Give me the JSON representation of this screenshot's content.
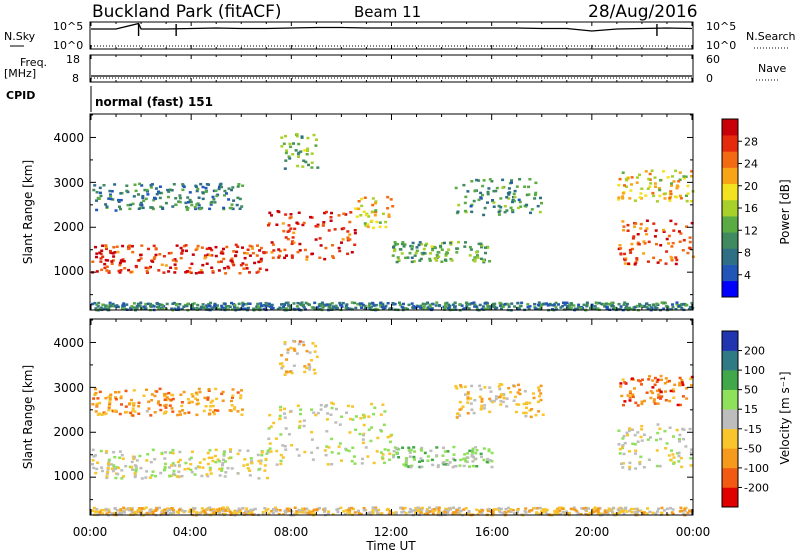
{
  "header": {
    "title": "Buckland Park (fitACF)",
    "beam": "Beam 11",
    "date": "28/Aug/2016"
  },
  "top_panels": {
    "nsky_label": "N.Sky",
    "nsky_left_ticks": [
      "10^5",
      "10^0"
    ],
    "nsky_right_ticks": [
      "10^5",
      "10^0"
    ],
    "nsearch_label": "N.Search",
    "freq_label": "Freq.",
    "freq_unit": "[MHz]",
    "freq_ticks": [
      "18",
      "8"
    ],
    "nave_ticks": [
      "60",
      "0"
    ],
    "nave_label": "Nave",
    "cpid_label": "CPID",
    "cpid_value": "normal (fast) 151"
  },
  "x_axis": {
    "label": "Time UT",
    "ticks": [
      "00:00",
      "04:00",
      "08:00",
      "12:00",
      "16:00",
      "20:00",
      "00:00"
    ]
  },
  "y_axis": {
    "label": "Slant Range [km]",
    "ticks": [
      "1000",
      "2000",
      "3000",
      "4000"
    ]
  },
  "colors": {
    "power": [
      "#0000ff",
      "#2255b8",
      "#2f6f85",
      "#3f8a5e",
      "#5bab45",
      "#a8d02a",
      "#f2e21f",
      "#f7a417",
      "#f26a12",
      "#e62a0e",
      "#c8000a"
    ],
    "velocity": [
      "#e00000",
      "#f25a14",
      "#f59a1c",
      "#f8c62c",
      "#bdbdbd",
      "#8fe05a",
      "#40a84a",
      "#2f7a84",
      "#2235b0"
    ]
  },
  "colorbars": {
    "power_label": "Power [dB]",
    "power_ticks": [
      "28",
      "24",
      "20",
      "16",
      "12",
      "8",
      "4"
    ],
    "velocity_label": "Velocity [m s⁻¹]",
    "velocity_ticks": [
      "200",
      "100",
      "50",
      "15",
      "-15",
      "-50",
      "-100",
      "-200"
    ]
  },
  "chart_data": [
    {
      "type": "line",
      "panel": "N.Sky / N.Search",
      "x": [
        0,
        1,
        1.9,
        2,
        3,
        4,
        5,
        6,
        7,
        8,
        9,
        10,
        11,
        12,
        13,
        14,
        15,
        16,
        17,
        18,
        19,
        20,
        21,
        22,
        23,
        24
      ],
      "y_log10": [
        3.8,
        3.8,
        4.9,
        3.8,
        3.8,
        3.9,
        4.0,
        3.9,
        3.9,
        4.0,
        4.1,
        4.1,
        4.0,
        4.0,
        4.0,
        4.0,
        4.0,
        4.0,
        4.0,
        3.9,
        3.9,
        3.4,
        3.8,
        3.9,
        4.0,
        3.9
      ],
      "ylim_log10": [
        0,
        5
      ],
      "x_unit": "hours UT"
    },
    {
      "type": "line",
      "panel": "Freq / Nave",
      "x": [
        0,
        24
      ],
      "freq_mhz": [
        10,
        10
      ],
      "ylim": [
        8,
        18
      ]
    },
    {
      "type": "heatmap",
      "panel": "Power",
      "x_range": [
        0,
        24
      ],
      "y_range": [
        180,
        4500
      ],
      "z_range": [
        0,
        30
      ],
      "regions": [
        {
          "t0": 0,
          "t1": 7,
          "r0": 1000,
          "r1": 1650,
          "z": 26
        },
        {
          "t0": 7,
          "t1": 10.5,
          "r0": 1300,
          "r1": 2400,
          "z": 26
        },
        {
          "t0": 10.5,
          "t1": 12,
          "r0": 2000,
          "r1": 2700,
          "z": 18
        },
        {
          "t0": 0,
          "t1": 6,
          "r0": 2400,
          "r1": 3000,
          "z": 8
        },
        {
          "t0": 7.5,
          "t1": 9,
          "r0": 3300,
          "r1": 4100,
          "z": 12
        },
        {
          "t0": 12,
          "t1": 16,
          "r0": 1250,
          "r1": 1700,
          "z": 12
        },
        {
          "t0": 14.5,
          "t1": 18,
          "r0": 2300,
          "r1": 3100,
          "z": 10
        },
        {
          "t0": 21,
          "t1": 24,
          "r0": 1200,
          "r1": 2200,
          "z": 24
        },
        {
          "t0": 21,
          "t1": 24,
          "r0": 2600,
          "r1": 3300,
          "z": 18
        },
        {
          "t0": 0,
          "t1": 24,
          "r0": 180,
          "r1": 350,
          "z": 8
        }
      ]
    },
    {
      "type": "heatmap",
      "panel": "Velocity",
      "x_range": [
        0,
        24
      ],
      "y_range": [
        180,
        4500
      ],
      "z_range": [
        -200,
        200
      ],
      "regions": [
        {
          "t0": 0,
          "t1": 7,
          "r0": 1000,
          "r1": 1650,
          "z": 0
        },
        {
          "t0": 7,
          "t1": 12,
          "r0": 1300,
          "r1": 2700,
          "z": 0
        },
        {
          "t0": 0,
          "t1": 6,
          "r0": 2400,
          "r1": 3000,
          "z": -80
        },
        {
          "t0": 7.5,
          "t1": 9,
          "r0": 3300,
          "r1": 4100,
          "z": -60
        },
        {
          "t0": 12,
          "t1": 16,
          "r0": 1250,
          "r1": 1700,
          "z": 40
        },
        {
          "t0": 14.5,
          "t1": 18,
          "r0": 2300,
          "r1": 3100,
          "z": -40
        },
        {
          "t0": 21,
          "t1": 24,
          "r0": 1200,
          "r1": 2200,
          "z": 0
        },
        {
          "t0": 21,
          "t1": 24,
          "r0": 2600,
          "r1": 3300,
          "z": -120
        },
        {
          "t0": 0,
          "t1": 24,
          "r0": 180,
          "r1": 350,
          "z": -40
        }
      ]
    }
  ]
}
